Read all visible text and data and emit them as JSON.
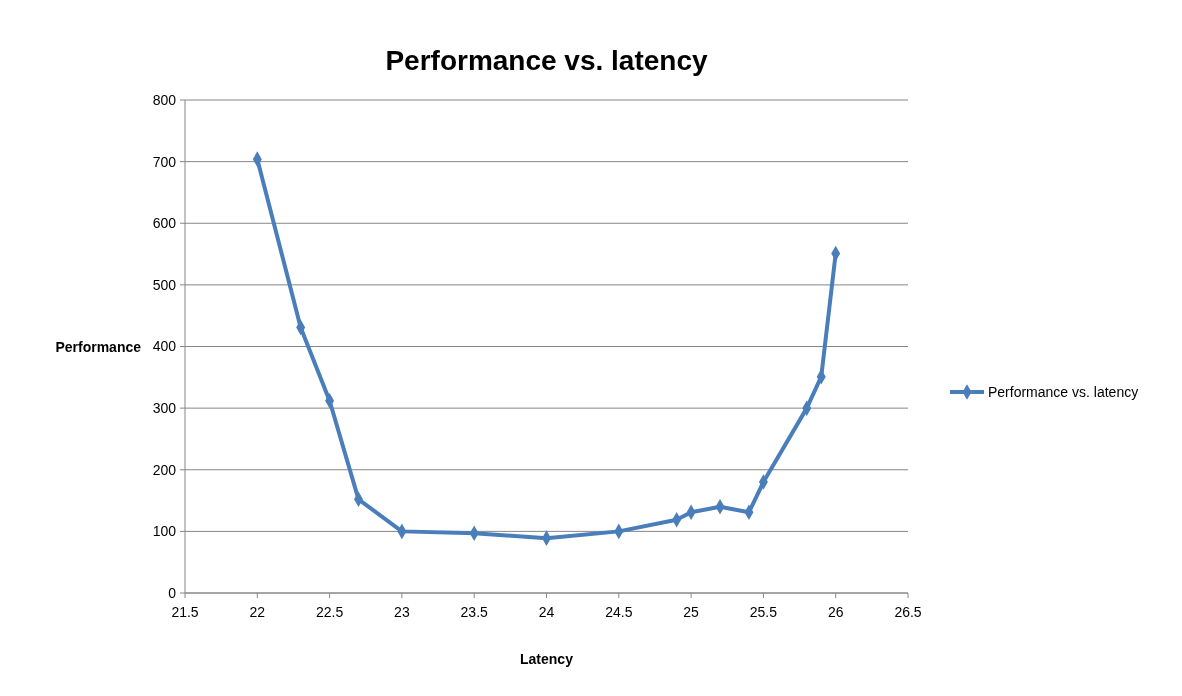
{
  "chart_data": {
    "type": "line",
    "title": "Performance vs. latency",
    "xlabel": "Latency",
    "ylabel": "Performance",
    "x": [
      22,
      22.3,
      22.5,
      22.7,
      23,
      23.5,
      24,
      24.5,
      24.9,
      25,
      25.2,
      25.4,
      25.5,
      25.8,
      25.9,
      26
    ],
    "series": [
      {
        "name": "Performance vs. latency",
        "color": "#4a7ebb",
        "values": [
          704,
          431,
          312,
          152,
          100,
          97,
          89,
          100,
          119,
          131,
          140,
          131,
          180,
          300,
          351,
          551
        ]
      }
    ],
    "xlim": [
      21.5,
      26.5
    ],
    "xticks": [
      21.5,
      22,
      22.5,
      23,
      23.5,
      24,
      24.5,
      25,
      25.5,
      26,
      26.5
    ],
    "ylim": [
      0,
      800
    ],
    "yticks": [
      0,
      100,
      200,
      300,
      400,
      500,
      600,
      700,
      800
    ],
    "grid": "y",
    "legend": "right",
    "marker": "diamond",
    "line_style": "solid"
  }
}
